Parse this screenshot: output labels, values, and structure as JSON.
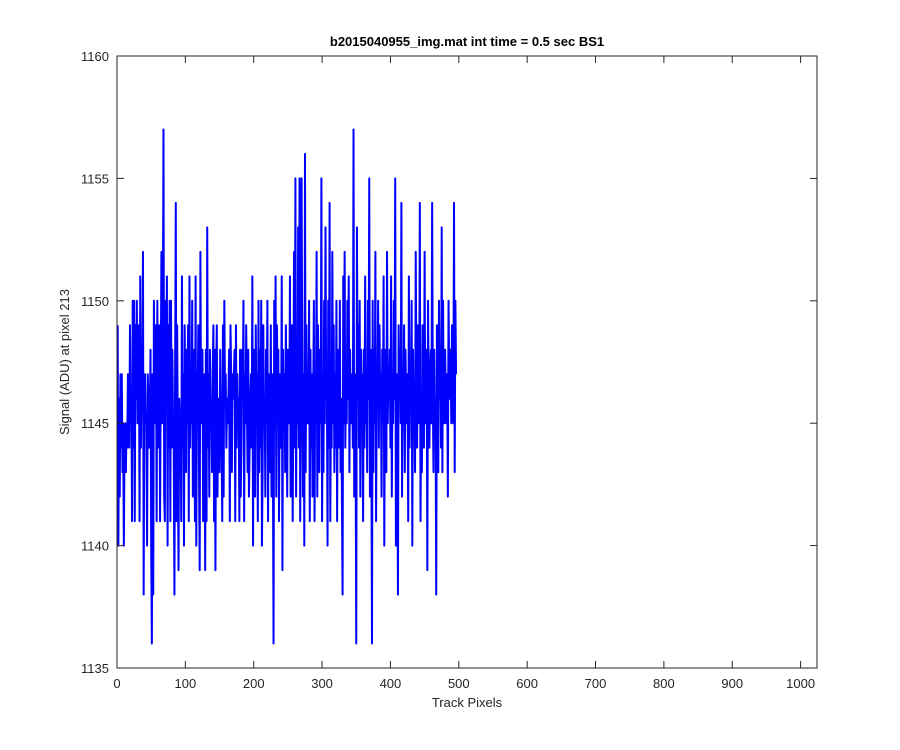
{
  "chart_data": {
    "type": "line",
    "title": "b2015040955_img.mat int time = 0.5 sec   BS1",
    "xlabel": "Track Pixels",
    "ylabel": "Signal (ADU) at pixel 213",
    "xlim": [
      0,
      1024
    ],
    "ylim": [
      1135,
      1160
    ],
    "xticks": [
      0,
      100,
      200,
      300,
      400,
      500,
      600,
      700,
      800,
      900,
      1000
    ],
    "yticks": [
      1135,
      1140,
      1145,
      1150,
      1155,
      1160
    ],
    "grid": false,
    "line_color": "#0000ff",
    "series": [
      {
        "x_start": 1,
        "x_step": 1,
        "values": [
          1149,
          1140,
          1146,
          1142,
          1147,
          1144,
          1147,
          1143,
          1145,
          1140,
          1144,
          1145,
          1143,
          1145,
          1144,
          1147,
          1145,
          1144,
          1149,
          1145,
          1146,
          1141,
          1150,
          1144,
          1150,
          1141,
          1149,
          1146,
          1150,
          1145,
          1147,
          1149,
          1141,
          1151,
          1144,
          1147,
          1146,
          1152,
          1138,
          1146,
          1147,
          1145,
          1145,
          1140,
          1147,
          1146,
          1144,
          1145,
          1148,
          1140,
          1136,
          1147,
          1138,
          1150,
          1145,
          1146,
          1149,
          1141,
          1150,
          1144,
          1147,
          1149,
          1141,
          1147,
          1152,
          1145,
          1148,
          1157,
          1142,
          1141,
          1150,
          1146,
          1151,
          1140,
          1149,
          1144,
          1150,
          1141,
          1150,
          1144,
          1148,
          1145,
          1144,
          1138,
          1147,
          1154,
          1141,
          1149,
          1144,
          1139,
          1146,
          1145,
          1145,
          1141,
          1151,
          1144,
          1147,
          1140,
          1149,
          1146,
          1143,
          1148,
          1145,
          1149,
          1141,
          1151,
          1144,
          1147,
          1145,
          1150,
          1142,
          1145,
          1148,
          1141,
          1151,
          1140,
          1147,
          1146,
          1149,
          1143,
          1139,
          1152,
          1145,
          1147,
          1148,
          1141,
          1144,
          1147,
          1139,
          1148,
          1141,
          1153,
          1144,
          1147,
          1142,
          1148,
          1145,
          1146,
          1143,
          1147,
          1149,
          1141,
          1148,
          1139,
          1147,
          1149,
          1142,
          1146,
          1144,
          1143,
          1148,
          1145,
          1144,
          1141,
          1149,
          1142,
          1150,
          1146,
          1147,
          1144,
          1146,
          1145,
          1146,
          1148,
          1141,
          1149,
          1147,
          1143,
          1147,
          1146,
          1147,
          1148,
          1141,
          1149,
          1144,
          1147,
          1145,
          1146,
          1141,
          1148,
          1142,
          1144,
          1148,
          1146,
          1150,
          1141,
          1147,
          1145,
          1149,
          1146,
          1143,
          1148,
          1142,
          1144,
          1146,
          1147,
          1144,
          1151,
          1140,
          1148,
          1146,
          1142,
          1149,
          1145,
          1147,
          1141,
          1150,
          1143,
          1148,
          1144,
          1150,
          1140,
          1143,
          1149,
          1145,
          1146,
          1142,
          1148,
          1145,
          1150,
          1141,
          1147,
          1146,
          1143,
          1149,
          1142,
          1147,
          1144,
          1136,
          1150,
          1145,
          1151,
          1142,
          1149,
          1146,
          1148,
          1141,
          1147,
          1146,
          1144,
          1151,
          1139,
          1148,
          1145,
          1147,
          1143,
          1149,
          1146,
          1142,
          1148,
          1147,
          1145,
          1151,
          1142,
          1145,
          1149,
          1141,
          1146,
          1152,
          1144,
          1155,
          1142,
          1147,
          1145,
          1153,
          1144,
          1155,
          1141,
          1146,
          1155,
          1148,
          1142,
          1147,
          1140,
          1156,
          1143,
          1149,
          1145,
          1147,
          1145,
          1150,
          1141,
          1148,
          1144,
          1147,
          1142,
          1146,
          1150,
          1141,
          1147,
          1145,
          1152,
          1142,
          1149,
          1146,
          1143,
          1148,
          1145,
          1155,
          1141,
          1147,
          1143,
          1150,
          1145,
          1153,
          1146,
          1147,
          1140,
          1150,
          1144,
          1154,
          1141,
          1146,
          1144,
          1152,
          1145,
          1149,
          1143,
          1147,
          1144,
          1150,
          1141,
          1148,
          1146,
          1144,
          1150,
          1143,
          1146,
          1142,
          1138,
          1151,
          1145,
          1152,
          1144,
          1147,
          1145,
          1150,
          1146,
          1151,
          1143,
          1148,
          1145,
          1146,
          1147,
          1144,
          1157,
          1142,
          1147,
          1145,
          1136,
          1153,
          1146,
          1149,
          1144,
          1150,
          1142,
          1148,
          1145,
          1147,
          1141,
          1148,
          1144,
          1151,
          1145,
          1147,
          1143,
          1150,
          1146,
          1155,
          1142,
          1148,
          1145,
          1136,
          1150,
          1143,
          1148,
          1145,
          1152,
          1141,
          1147,
          1146,
          1150,
          1144,
          1149,
          1146,
          1147,
          1142,
          1148,
          1145,
          1151,
          1140,
          1148,
          1146,
          1143,
          1152,
          1145,
          1147,
          1146,
          1148,
          1144,
          1151,
          1142,
          1147,
          1145,
          1150,
          1146,
          1155,
          1140,
          1147,
          1144,
          1138,
          1149,
          1146,
          1148,
          1145,
          1154,
          1142,
          1147,
          1145,
          1149,
          1143,
          1148,
          1146,
          1145,
          1147,
          1141,
          1151,
          1144,
          1147,
          1146,
          1150,
          1140,
          1148,
          1145,
          1146,
          1143,
          1152,
          1147,
          1144,
          1149,
          1146,
          1145,
          1154,
          1141,
          1146,
          1143,
          1149,
          1147,
          1144,
          1152,
          1145,
          1145,
          1148,
          1139,
          1150,
          1146,
          1144,
          1147,
          1148,
          1145,
          1154,
          1146,
          1143,
          1148,
          1145,
          1146,
          1138,
          1149,
          1147,
          1143,
          1150,
          1146,
          1148,
          1144,
          1153,
          1143,
          1150,
          1145,
          1145,
          1148,
          1146,
          1145,
          1147,
          1142,
          1150,
          1147,
          1146,
          1148,
          1145,
          1149,
          1147,
          1145,
          1154,
          1143,
          1150,
          1147
        ]
      }
    ]
  }
}
